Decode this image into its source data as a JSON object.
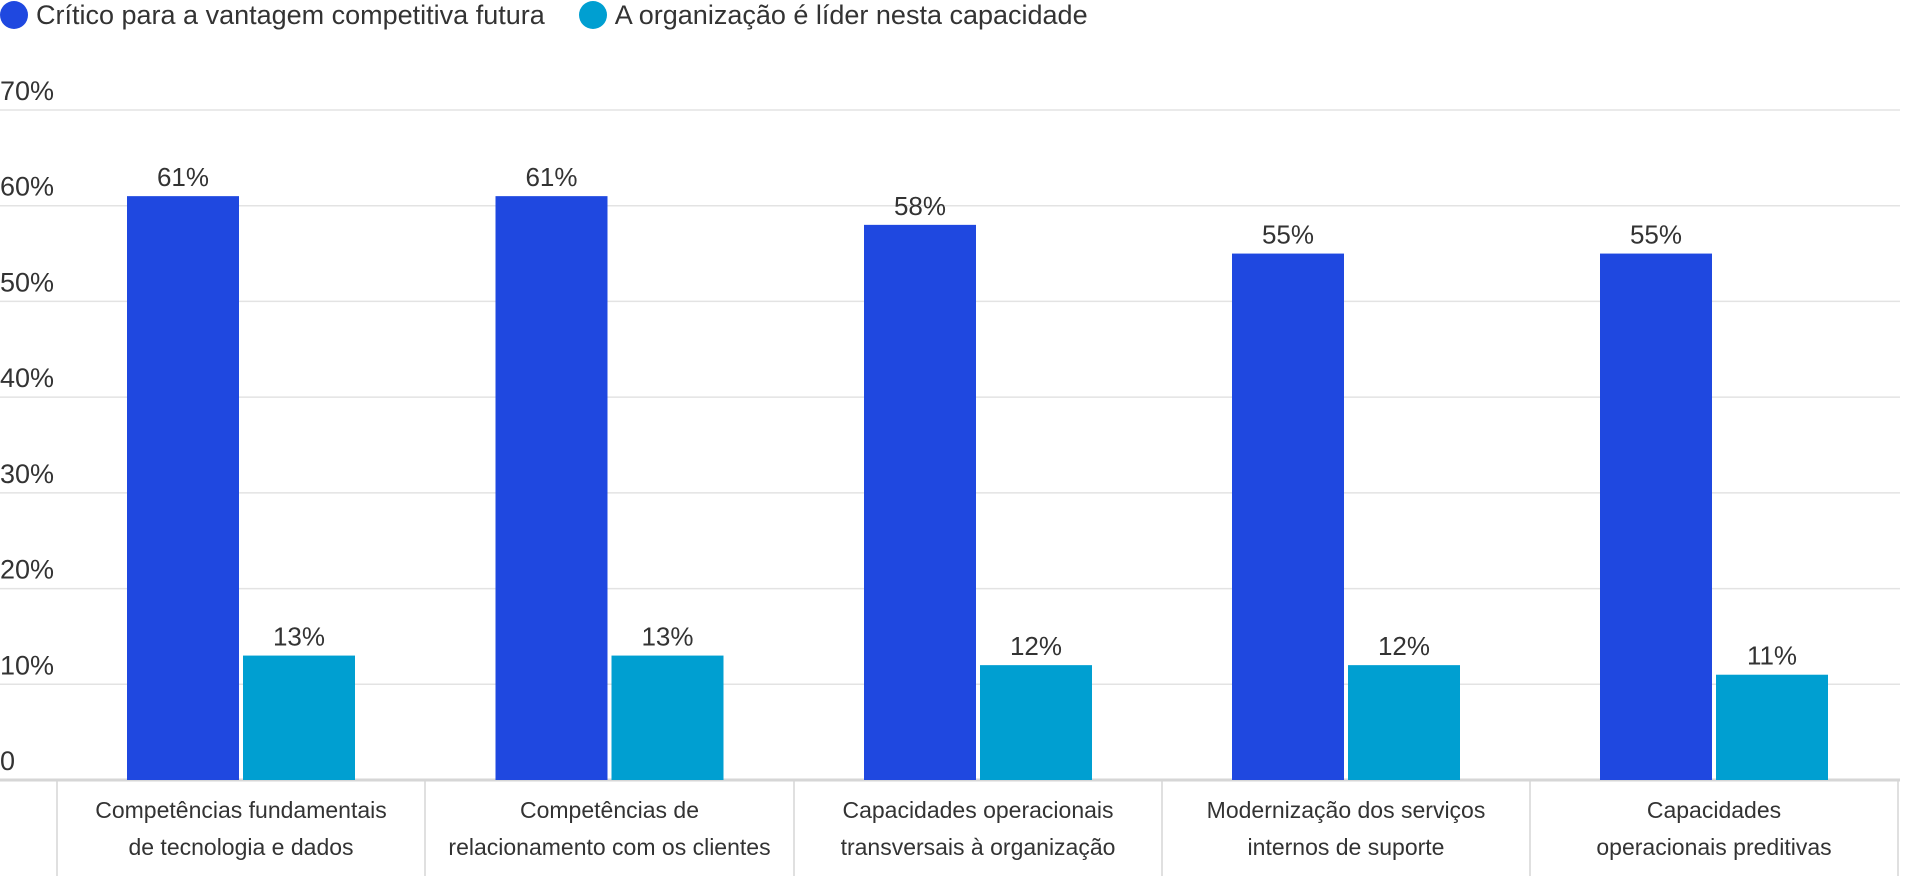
{
  "chart_data": {
    "type": "bar",
    "categories": [
      [
        "Competências fundamentais",
        "de tecnologia e dados"
      ],
      [
        "Competências de",
        "relacionamento com os clientes"
      ],
      [
        "Capacidades operacionais",
        "transversais à organização"
      ],
      [
        "Modernização dos serviços",
        "internos de suporte"
      ],
      [
        "Capacidades",
        "operacionais preditivas"
      ]
    ],
    "series": [
      {
        "name": "Crítico para a vantagem competitiva futura",
        "values": [
          61,
          61,
          58,
          55,
          55
        ],
        "labels": [
          "61%",
          "61%",
          "58%",
          "55%",
          "55%"
        ],
        "color": "#1f48e0"
      },
      {
        "name": "A organização é líder nesta capacidade",
        "values": [
          13,
          13,
          12,
          12,
          11
        ],
        "labels": [
          "13%",
          "13%",
          "12%",
          "12%",
          "11%"
        ],
        "color": "#009fd1"
      }
    ],
    "ylim": [
      0,
      70
    ],
    "yticks": [
      0,
      10,
      20,
      30,
      40,
      50,
      60,
      70
    ],
    "ytick_labels": [
      "0",
      "10%",
      "20%",
      "30%",
      "40%",
      "50%",
      "60%",
      "70%"
    ],
    "grid": true,
    "legend_position": "top-left"
  }
}
